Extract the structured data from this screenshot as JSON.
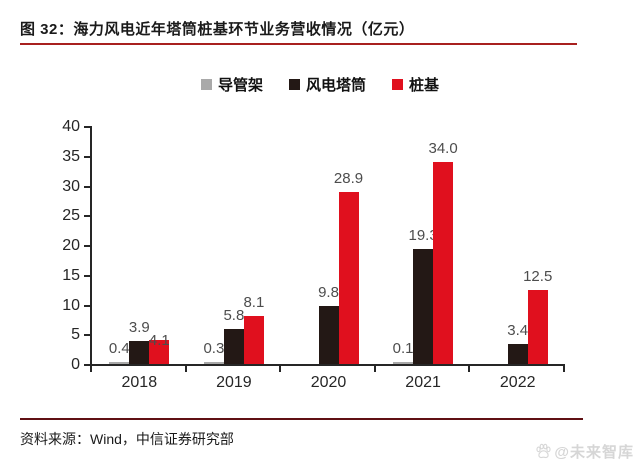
{
  "title": {
    "text": "图 32：海力风电近年塔筒桩基环节业务营收情况（亿元）"
  },
  "chart_data": {
    "type": "bar",
    "title": "图 32：海力风电近年塔筒桩基环节业务营收情况（亿元）",
    "categories": [
      "2018",
      "2019",
      "2020",
      "2021",
      "2022"
    ],
    "series": [
      {
        "name": "导管架",
        "color": "#a9a9a9",
        "values": [
          0.4,
          0.3,
          null,
          0.1,
          null
        ]
      },
      {
        "name": "风电塔筒",
        "color": "#231815",
        "values": [
          3.9,
          5.8,
          9.8,
          19.3,
          3.4
        ]
      },
      {
        "name": "桩基",
        "color": "#e0101e",
        "values": [
          4.1,
          8.1,
          28.9,
          34.0,
          12.5
        ]
      }
    ],
    "ylabel": "",
    "xlabel": "",
    "ylim": [
      0,
      40
    ],
    "ytick_step": 5,
    "grid": false,
    "legend_position": "top",
    "value_labels": true,
    "value_label_decimals": 1
  },
  "footer": {
    "source": "资料来源：Wind，中信证券研究部",
    "watermark": "@未来智库",
    "watermark_icon": "paw-logo-icon"
  },
  "colors": {
    "title_underline": "#a8201f",
    "footer_rule": "#601014",
    "axis": "#262626",
    "value_label": "#4d4d4d"
  }
}
